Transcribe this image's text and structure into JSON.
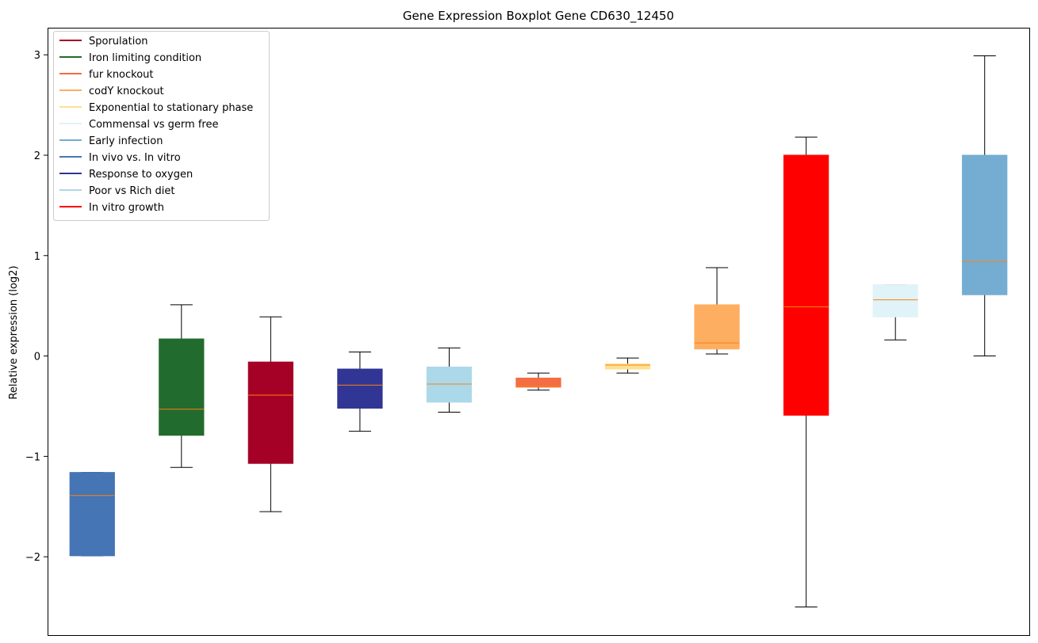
{
  "chart_data": {
    "type": "box",
    "title": "Gene Expression Boxplot Gene CD630_12450",
    "xlabel": "",
    "ylabel": "Relative expression (log2)",
    "ylim": [
      -2.78,
      3.27
    ],
    "yticks": [
      -2,
      -1,
      0,
      1,
      2,
      3
    ],
    "ytick_labels": [
      "−2",
      "−1",
      "0",
      "1",
      "2",
      "3"
    ],
    "x_ticks_shown": false,
    "legend_position": "upper-left",
    "median_color": "#ff7f0e",
    "legend": [
      {
        "label": "Sporulation",
        "color": "#a50026"
      },
      {
        "label": "Iron limiting condition",
        "color": "#226b2e"
      },
      {
        "label": "fur knockout",
        "color": "#f46d43"
      },
      {
        "label": "codY knockout",
        "color": "#fdae61"
      },
      {
        "label": "Exponential to stationary phase",
        "color": "#fee090"
      },
      {
        "label": "Commensal vs germ free",
        "color": "#e0f3f8"
      },
      {
        "label": "Early infection",
        "color": "#74add1"
      },
      {
        "label": "In vivo vs. In vitro",
        "color": "#4575b4"
      },
      {
        "label": "Response to oxygen",
        "color": "#313695"
      },
      {
        "label": "Poor vs Rich diet",
        "color": "#abd9e9"
      },
      {
        "label": "In vitro growth",
        "color": "#ff0000"
      }
    ],
    "boxes": [
      {
        "color": "#4575b4",
        "whislo": -1.99,
        "q1": -1.99,
        "med": -1.39,
        "q3": -1.16,
        "whishi": -1.16
      },
      {
        "color": "#226b2e",
        "whislo": -1.11,
        "q1": -0.79,
        "med": -0.53,
        "q3": 0.17,
        "whishi": 0.51
      },
      {
        "color": "#a50026",
        "whislo": -1.55,
        "q1": -1.07,
        "med": -0.39,
        "q3": -0.06,
        "whishi": 0.39
      },
      {
        "color": "#313695",
        "whislo": -0.75,
        "q1": -0.52,
        "med": -0.29,
        "q3": -0.13,
        "whishi": 0.04
      },
      {
        "color": "#abd9e9",
        "whislo": -0.56,
        "q1": -0.46,
        "med": -0.28,
        "q3": -0.11,
        "whishi": 0.08
      },
      {
        "color": "#f46d43",
        "whislo": -0.34,
        "q1": -0.31,
        "med": -0.3,
        "q3": -0.22,
        "whishi": -0.17
      },
      {
        "color": "#fee090",
        "whislo": -0.17,
        "q1": -0.13,
        "med": -0.09,
        "q3": -0.08,
        "whishi": -0.02
      },
      {
        "color": "#fdae61",
        "whislo": 0.02,
        "q1": 0.07,
        "med": 0.13,
        "q3": 0.51,
        "whishi": 0.88
      },
      {
        "color": "#ff0000",
        "whislo": -2.5,
        "q1": -0.59,
        "med": 0.49,
        "q3": 2.0,
        "whishi": 2.18
      },
      {
        "color": "#e0f3f8",
        "whislo": 0.16,
        "q1": 0.39,
        "med": 0.56,
        "q3": 0.71,
        "whishi": 0.71
      },
      {
        "color": "#74add1",
        "whislo": 0.0,
        "q1": 0.61,
        "med": 0.94,
        "q3": 2.0,
        "whishi": 2.99
      }
    ]
  }
}
